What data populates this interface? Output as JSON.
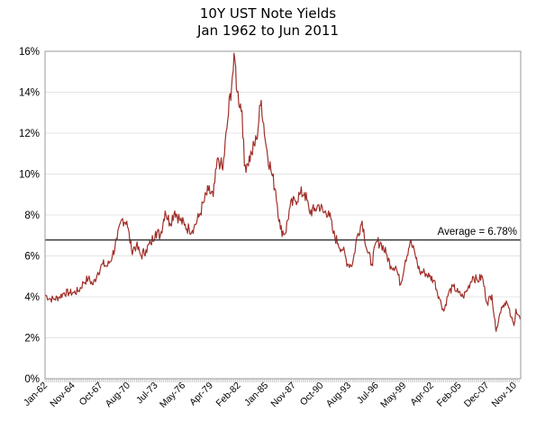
{
  "chart_data": {
    "type": "line",
    "title": "10Y UST Note Yields",
    "subtitle": "Jan 1962 to Jun 2011",
    "xlabel": "",
    "ylabel": "",
    "ylim": [
      0,
      16
    ],
    "yticks": [
      "0%",
      "2%",
      "4%",
      "6%",
      "8%",
      "10%",
      "12%",
      "14%",
      "16%"
    ],
    "xticks": [
      "Jan-62",
      "Nov-64",
      "Oct-67",
      "Aug-70",
      "Jul-73",
      "May-76",
      "Apr-79",
      "Feb-82",
      "Jan-85",
      "Nov-87",
      "Oct-90",
      "Aug-93",
      "Jul-96",
      "May-99",
      "Apr-02",
      "Feb-05",
      "Dec-07",
      "Nov-10"
    ],
    "xrange": [
      "1962-01",
      "2011-06"
    ],
    "grid": "horizontal",
    "legend": "none",
    "line_color": "#a0302a",
    "average_line_color": "#404040",
    "average": {
      "value": 6.78,
      "label": "Average = 6.78%"
    },
    "series": [
      {
        "x": [
          1962.0,
          1962.5,
          1963.0,
          1963.5,
          1964.0,
          1964.5,
          1965.0,
          1965.5,
          1966.0,
          1966.5,
          1967.0,
          1967.5,
          1968.0,
          1968.5,
          1969.0,
          1969.5,
          1970.0,
          1970.5,
          1971.0,
          1971.5,
          1972.0,
          1972.5,
          1973.0,
          1973.5,
          1974.0,
          1974.5,
          1975.0,
          1975.5,
          1976.0,
          1976.5,
          1977.0,
          1977.5,
          1978.0,
          1978.5,
          1979.0,
          1979.5,
          1980.0,
          1980.25,
          1980.5,
          1981.0,
          1981.5,
          1981.75,
          1982.0,
          1982.5,
          1982.75,
          1983.0,
          1983.5,
          1984.0,
          1984.5,
          1985.0,
          1985.5,
          1986.0,
          1986.5,
          1987.0,
          1987.5,
          1988.0,
          1988.5,
          1989.0,
          1989.5,
          1990.0,
          1990.5,
          1991.0,
          1991.5,
          1992.0,
          1992.5,
          1993.0,
          1993.5,
          1994.0,
          1994.5,
          1995.0,
          1995.5,
          1996.0,
          1996.5,
          1997.0,
          1997.5,
          1998.0,
          1998.5,
          1999.0,
          1999.5,
          2000.0,
          2000.5,
          2001.0,
          2001.5,
          2002.0,
          2002.5,
          2003.0,
          2003.5,
          2004.0,
          2004.5,
          2005.0,
          2005.5,
          2006.0,
          2006.5,
          2007.0,
          2007.5,
          2008.0,
          2008.5,
          2008.9,
          2009.0,
          2009.5,
          2010.0,
          2010.5,
          2010.8,
          2011.0,
          2011.45
        ],
        "values": [
          4.1,
          3.9,
          3.9,
          4.0,
          4.2,
          4.2,
          4.2,
          4.3,
          4.7,
          4.9,
          4.6,
          5.2,
          5.6,
          5.5,
          6.0,
          6.8,
          7.8,
          7.7,
          6.3,
          6.5,
          6.0,
          6.3,
          6.6,
          7.2,
          7.0,
          8.2,
          7.6,
          8.2,
          7.8,
          7.5,
          7.3,
          7.4,
          7.9,
          8.6,
          9.2,
          8.9,
          10.8,
          10.5,
          10.2,
          12.6,
          14.8,
          15.6,
          14.0,
          13.1,
          10.4,
          10.5,
          11.0,
          11.7,
          13.6,
          11.4,
          10.2,
          9.2,
          7.3,
          7.1,
          8.4,
          8.7,
          9.0,
          9.1,
          8.2,
          8.2,
          8.5,
          8.1,
          8.2,
          7.1,
          6.6,
          6.3,
          5.6,
          5.6,
          7.0,
          7.7,
          6.3,
          5.6,
          6.7,
          6.6,
          6.1,
          5.5,
          5.5,
          4.6,
          5.8,
          6.7,
          6.1,
          5.2,
          5.2,
          5.0,
          4.8,
          4.0,
          3.3,
          4.2,
          4.5,
          4.2,
          4.0,
          4.4,
          5.0,
          4.8,
          5.0,
          3.7,
          4.1,
          2.4,
          2.5,
          3.5,
          3.8,
          3.0,
          2.6,
          3.4,
          2.9
        ]
      }
    ]
  }
}
